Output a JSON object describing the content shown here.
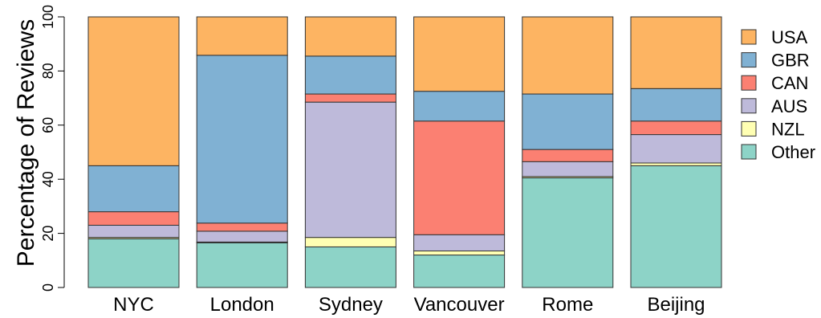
{
  "chart_data": {
    "type": "bar",
    "stacked": true,
    "ylabel": "Percentage of Reviews",
    "ylim": [
      0,
      100
    ],
    "yticks": [
      "0",
      "20",
      "40",
      "60",
      "80",
      "100"
    ],
    "categories": [
      "NYC",
      "London",
      "Sydney",
      "Vancouver",
      "Rome",
      "Beijing"
    ],
    "legend_position": "right",
    "series": [
      {
        "name": "Other",
        "color": "#8DD3C7",
        "values": [
          18,
          16.5,
          15,
          12,
          40.5,
          45
        ]
      },
      {
        "name": "NZL",
        "color": "#FFFFB3",
        "values": [
          0.5,
          0.3,
          3.5,
          1.5,
          0.5,
          1
        ]
      },
      {
        "name": "AUS",
        "color": "#BEBADA",
        "values": [
          4.5,
          4,
          50,
          6,
          5.5,
          10.5
        ]
      },
      {
        "name": "CAN",
        "color": "#FB8072",
        "values": [
          5,
          3,
          3,
          42,
          4.5,
          5
        ]
      },
      {
        "name": "GBR",
        "color": "#80B1D3",
        "values": [
          17,
          62,
          14,
          11,
          20.5,
          12
        ]
      },
      {
        "name": "USA",
        "color": "#FDB462",
        "values": [
          55,
          14.2,
          14.5,
          27.5,
          28.5,
          26.5
        ]
      }
    ],
    "legend_order": [
      "USA",
      "GBR",
      "CAN",
      "AUS",
      "NZL",
      "Other"
    ]
  }
}
